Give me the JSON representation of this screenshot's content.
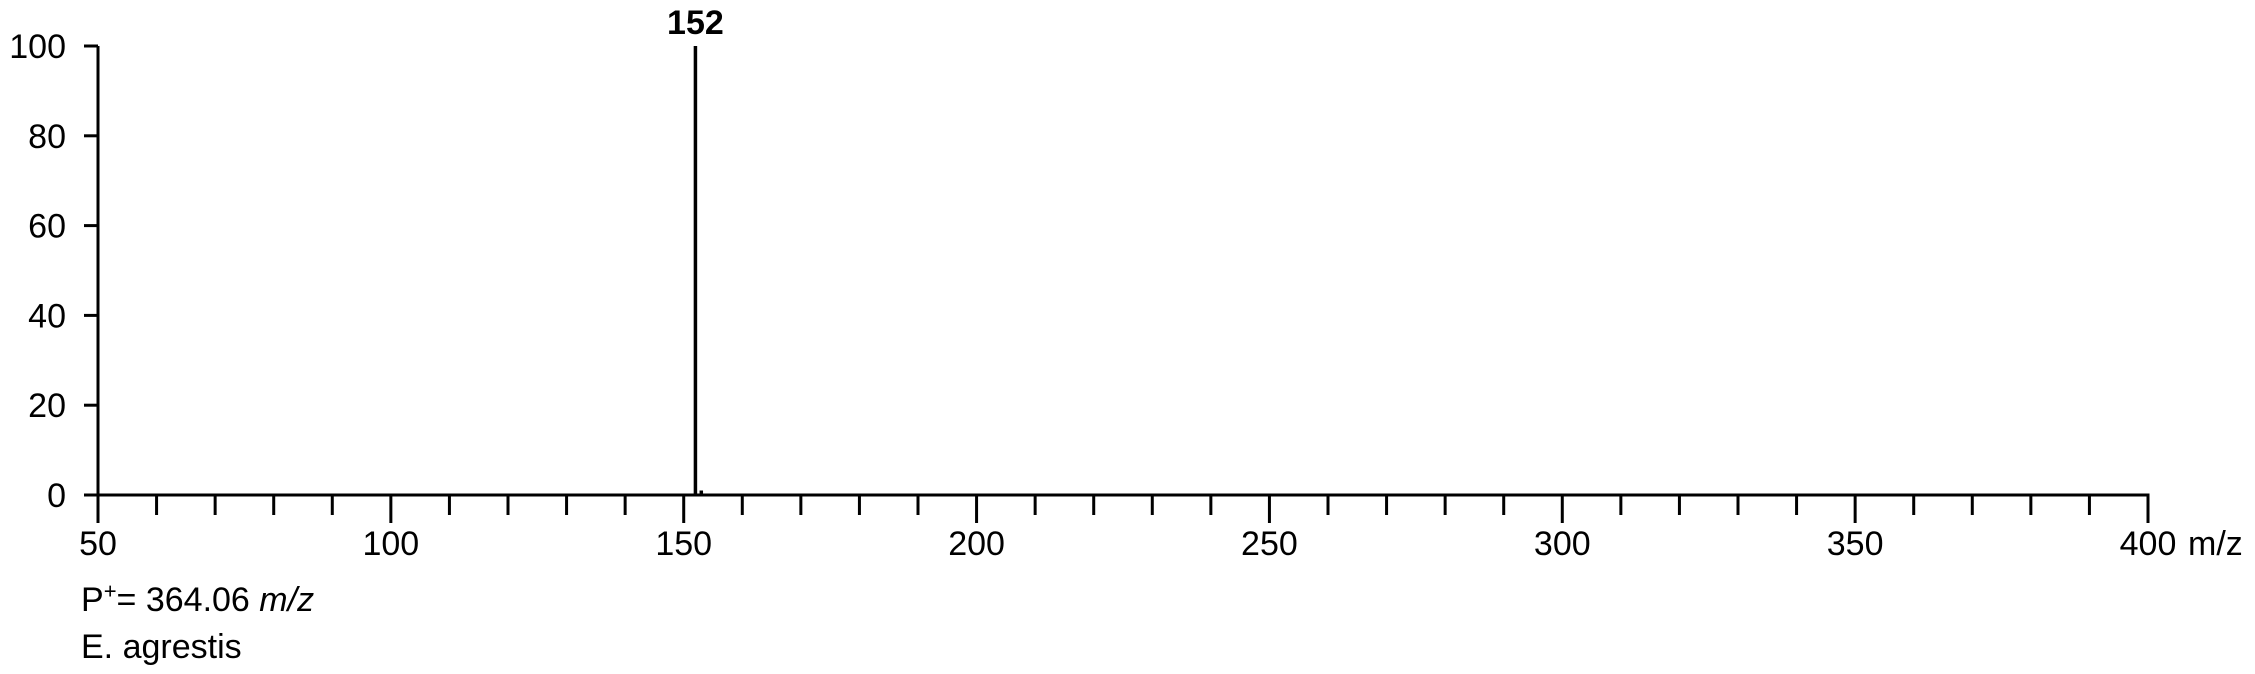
{
  "chart_data": {
    "type": "bar",
    "title": "",
    "xlabel": "",
    "ylabel": "",
    "x_unit": "m/z",
    "xlim": [
      50,
      400
    ],
    "ylim": [
      0,
      100
    ],
    "x_ticks_major": [
      50,
      100,
      150,
      200,
      250,
      300,
      350,
      400
    ],
    "x_tick_minor_step": 10,
    "y_ticks": [
      0,
      20,
      40,
      60,
      80,
      100
    ],
    "peaks": [
      {
        "mz": 152,
        "intensity": 100,
        "label": "152"
      },
      {
        "mz": 153,
        "intensity": 1,
        "label": ""
      }
    ],
    "annotations": {
      "parent_ion_prefix": "P",
      "parent_ion_sup": "+",
      "parent_ion_value": "= 364.06 ",
      "parent_ion_unit": "m/z",
      "species": "E. agrestis"
    }
  },
  "colors": {
    "axis": "#000000",
    "peak": "#000000",
    "background": "#ffffff"
  }
}
